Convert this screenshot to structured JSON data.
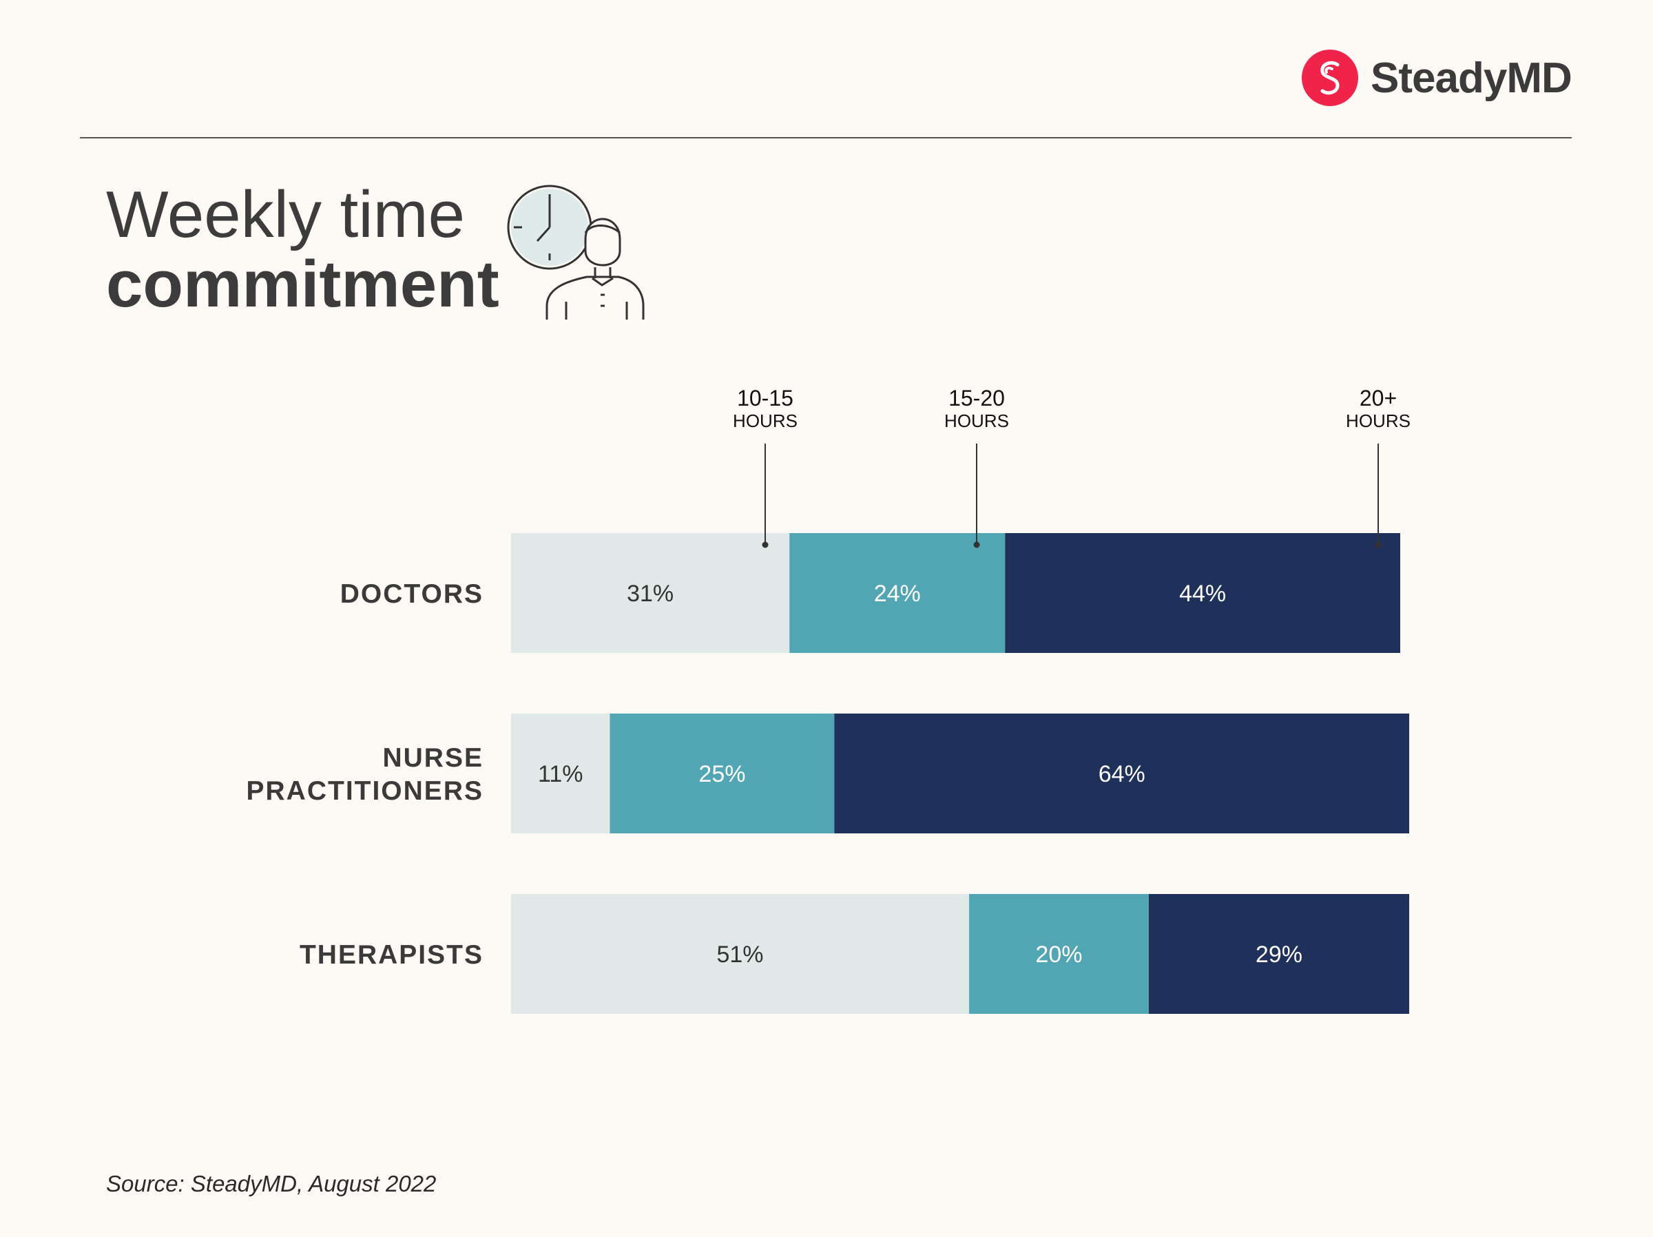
{
  "brand": {
    "name": "SteadyMD",
    "mark_color": "#f0244a"
  },
  "title": {
    "line1": "Weekly time",
    "line2": "commitment"
  },
  "icon": {
    "name": "clock-person-icon"
  },
  "source": "Source: SteadyMD, August 2022",
  "colors": {
    "seg1": "#e0e9e8",
    "seg2": "#52a6b3",
    "seg3": "#1f305b",
    "label_dark": "#333333",
    "label_light": "#ffffff"
  },
  "chart_data": {
    "type": "bar",
    "orientation": "horizontal-stacked",
    "categories": [
      "DOCTORS",
      "NURSE PRACTITIONERS",
      "THERAPISTS"
    ],
    "series": [
      {
        "name": "10-15 HOURS",
        "values": [
          31,
          11,
          51
        ],
        "labels": [
          "31%",
          "11%",
          "51%"
        ]
      },
      {
        "name": "15-20 HOURS",
        "values": [
          24,
          25,
          20
        ],
        "labels": [
          "24%",
          "25%",
          "20%"
        ]
      },
      {
        "name": "20+ HOURS",
        "values": [
          44,
          64,
          29
        ],
        "labels": [
          "44%",
          "64%",
          "29%"
        ]
      }
    ],
    "series_header": [
      {
        "range": "10-15",
        "unit": "HOURS"
      },
      {
        "range": "15-20",
        "unit": "HOURS"
      },
      {
        "range": "20+",
        "unit": "HOURS"
      }
    ],
    "units": "%",
    "xlim": [
      0,
      99
    ],
    "grid": false,
    "legend": "top, with leader lines to first bar"
  }
}
